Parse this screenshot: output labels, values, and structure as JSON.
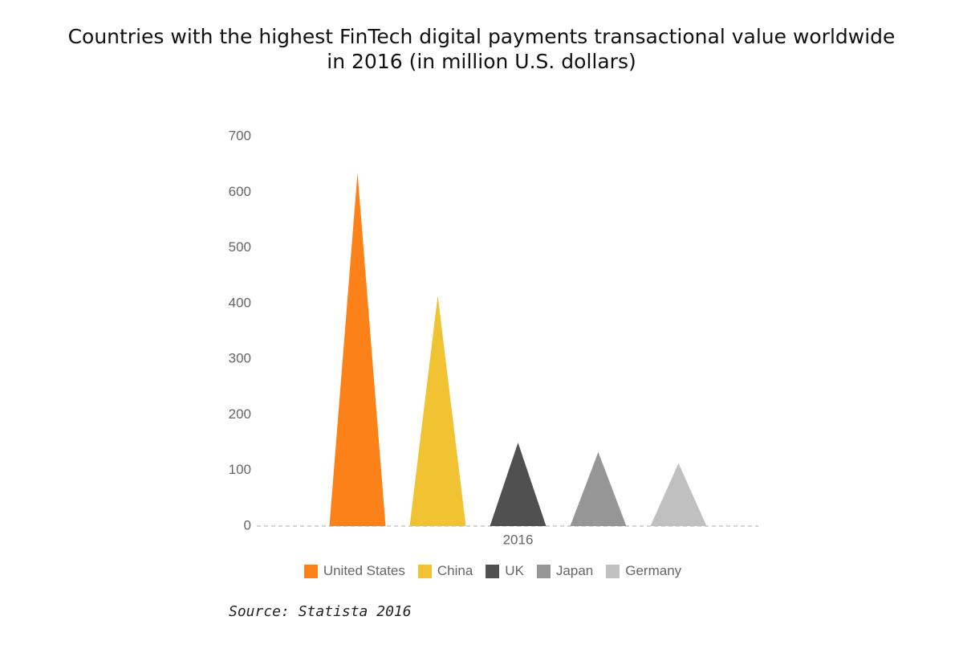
{
  "chart_data": {
    "type": "triangle-bar",
    "title": "Countries with the highest FinTech digital payments transactional value worldwide in 2016 (in million U.S. dollars)",
    "categories": [
      "2016"
    ],
    "series": [
      {
        "name": "United States",
        "color": "#fd8119",
        "values": [
          635
        ]
      },
      {
        "name": "China",
        "color": "#f1c232",
        "values": [
          414
        ]
      },
      {
        "name": "UK",
        "color": "#505050",
        "values": [
          150
        ]
      },
      {
        "name": "Japan",
        "color": "#969696",
        "values": [
          133
        ]
      },
      {
        "name": "Germany",
        "color": "#c0c0c0",
        "values": [
          113
        ]
      }
    ],
    "ylim": [
      0,
      700
    ],
    "yticks": [
      0,
      100,
      200,
      300,
      400,
      500,
      600,
      700
    ],
    "grid": false,
    "legend": "bottom",
    "source": "Source: Statista 2016"
  }
}
